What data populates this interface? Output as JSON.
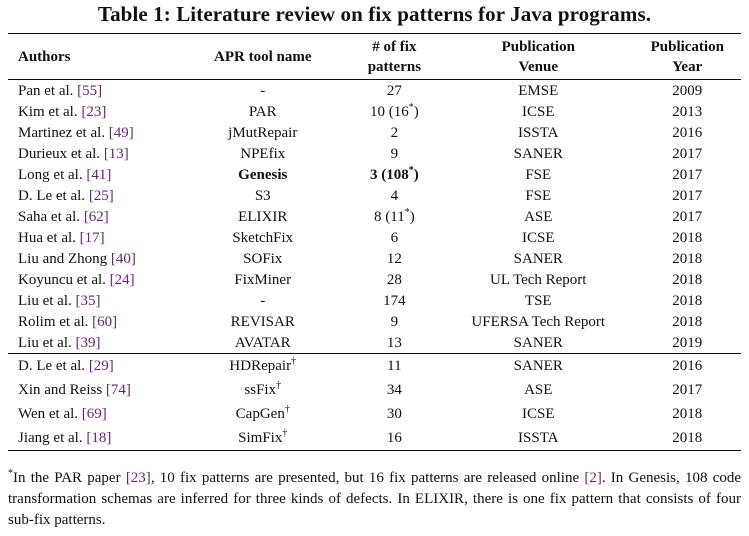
{
  "caption": "Table 1: Literature review on fix patterns for Java programs.",
  "headers": {
    "authors": "Authors",
    "tool": "APR tool name",
    "patterns": [
      "# of fix",
      "patterns"
    ],
    "venue": [
      "Publication",
      "Venue"
    ],
    "year": [
      "Publication",
      "Year"
    ]
  },
  "rows": [
    {
      "author": "Pan et al. ",
      "ref": "[55]",
      "tool": "-",
      "patterns": "27",
      "venue": "EMSE",
      "year": "2009"
    },
    {
      "author": "Kim et al. ",
      "ref": "[23]",
      "tool": "PAR",
      "patterns": "10 (16",
      "patterns_mark": "*",
      "patterns_end": ")",
      "venue": "ICSE",
      "year": "2013"
    },
    {
      "author": "Martinez et al. ",
      "ref": "[49]",
      "tool": "jMutRepair",
      "patterns": "2",
      "venue": "ISSTA",
      "year": "2016"
    },
    {
      "author": "Durieux et al. ",
      "ref": "[13]",
      "tool": "NPEfix",
      "patterns": "9",
      "venue": "SANER",
      "year": "2017"
    },
    {
      "author": "Long et al. ",
      "ref": "[41]",
      "tool": "Genesis",
      "bold": true,
      "patterns": "3 (108",
      "patterns_mark": "*",
      "patterns_end": ")",
      "venue": "FSE",
      "year": "2017"
    },
    {
      "author": "D. Le et al. ",
      "ref": "[25]",
      "tool": "S3",
      "patterns": "4",
      "venue": "FSE",
      "year": "2017"
    },
    {
      "author": "Saha et al. ",
      "ref": "[62]",
      "tool": "ELIXIR",
      "patterns": "8 (11",
      "patterns_mark": "*",
      "patterns_end": ")",
      "venue": "ASE",
      "year": "2017"
    },
    {
      "author": "Hua et al. ",
      "ref": "[17]",
      "tool": "SketchFix",
      "patterns": "6",
      "venue": "ICSE",
      "year": "2018"
    },
    {
      "author": "Liu and Zhong ",
      "ref": "[40]",
      "tool": "SOFix",
      "patterns": "12",
      "venue": "SANER",
      "year": "2018"
    },
    {
      "author": "Koyuncu et al. ",
      "ref": "[24]",
      "tool": "FixMiner",
      "patterns": "28",
      "venue": "UL Tech Report",
      "year": "2018"
    },
    {
      "author": "Liu et al. ",
      "ref": "[35]",
      "tool": "-",
      "patterns": "174",
      "venue": "TSE",
      "year": "2018"
    },
    {
      "author": "Rolim et al. ",
      "ref": "[60]",
      "tool": "REVISAR",
      "patterns": "9",
      "venue": "UFERSA Tech Report",
      "year": "2018"
    },
    {
      "author": "Liu et al. ",
      "ref": "[39]",
      "tool": "AVATAR",
      "patterns": "13",
      "venue": "SANER",
      "year": "2019"
    },
    {
      "author": "D. Le et al. ",
      "ref": "[29]",
      "tool": "HDRepair",
      "tool_mark": "†",
      "patterns": "11",
      "venue": "SANER",
      "year": "2016"
    },
    {
      "author": "Xin and Reiss ",
      "ref": "[74]",
      "tool": "ssFix",
      "tool_mark": "†",
      "patterns": "34",
      "venue": "ASE",
      "year": "2017"
    },
    {
      "author": "Wen et al. ",
      "ref": "[69]",
      "tool": "CapGen",
      "tool_mark": "†",
      "patterns": "30",
      "venue": "ICSE",
      "year": "2018"
    },
    {
      "author": "Jiang et al. ",
      "ref": "[18]",
      "tool": "SimFix",
      "tool_mark": "†",
      "patterns": "16",
      "venue": "ISSTA",
      "year": "2018"
    }
  ],
  "footnote": {
    "mark": "*",
    "t1": "In the PAR paper ",
    "r1": "[23]",
    "t2": ", 10 fix patterns are presented, but 16 fix patterns are released online ",
    "r2": "[2]",
    "t3": ". In Genesis, 108 code transformation schemas are inferred for three kinds of defects. In ELIXIR, there is one fix pattern that consists of four sub-fix patterns."
  }
}
